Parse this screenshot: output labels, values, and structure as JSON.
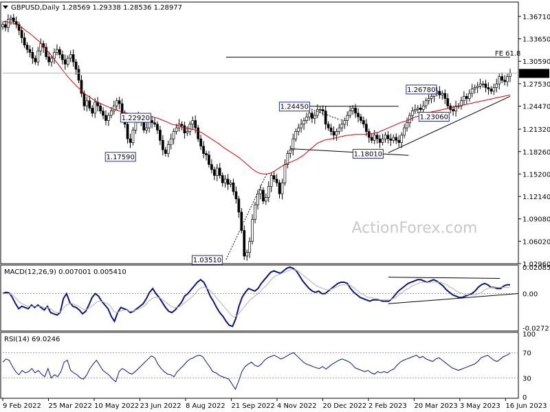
{
  "header": {
    "symbol": "GBPUSD,Daily",
    "ohlc": "1.28569 1.29338 1.28536 1.28977"
  },
  "colors": {
    "candle": "#000000",
    "ma": "#d40000",
    "macd": "#0a1478",
    "signal": "#b0b0b0",
    "label_border": "#1e2a8a",
    "price_highlight_bg": "#000000"
  },
  "chart_data": [
    {
      "type": "candlestick",
      "panel": "main",
      "title": "GBPUSD,Daily",
      "ylim": [
        1.0296,
        1.3867
      ],
      "y_ticks": [
        "1.36710",
        "1.33650",
        "1.30590",
        "1.27530",
        "1.24470",
        "1.21320",
        "1.18260",
        "1.15200",
        "1.12140",
        "1.09080",
        "1.06020",
        "1.02960"
      ],
      "y_tick_values": [
        1.3671,
        1.3365,
        1.3059,
        1.2753,
        1.2447,
        1.2132,
        1.1826,
        1.152,
        1.1214,
        1.0908,
        1.0602,
        1.0296
      ],
      "current_price": "1.28977",
      "current_price_value": 1.28977,
      "x_ticks": [
        "9 Feb 2022",
        "25 Mar 2022",
        "10 May 2022",
        "23 Jun 2022",
        "8 Aug 2022",
        "21 Sep 2022",
        "4 Nov 2022",
        "20 Dec 2022",
        "2 Feb 2023",
        "20 Mar 2023",
        "3 May 2023",
        "16 Jun 2023"
      ],
      "closes": [
        1.356,
        1.352,
        1.363,
        1.365,
        1.36,
        1.356,
        1.348,
        1.338,
        1.328,
        1.322,
        1.318,
        1.31,
        1.305,
        1.32,
        1.33,
        1.325,
        1.312,
        1.305,
        1.31,
        1.318,
        1.322,
        1.315,
        1.308,
        1.302,
        1.31,
        1.315,
        1.305,
        1.295,
        1.28,
        1.262,
        1.245,
        1.252,
        1.242,
        1.235,
        1.25,
        1.245,
        1.238,
        1.232,
        1.225,
        1.232,
        1.238,
        1.245,
        1.252,
        1.248,
        1.235,
        1.22,
        1.2,
        1.195,
        1.212,
        1.23,
        1.228,
        1.225,
        1.212,
        1.215,
        1.225,
        1.222,
        1.22,
        1.212,
        1.198,
        1.185,
        1.18,
        1.192,
        1.2,
        1.21,
        1.215,
        1.22,
        1.218,
        1.208,
        1.21,
        1.22,
        1.225,
        1.215,
        1.2,
        1.19,
        1.18,
        1.178,
        1.165,
        1.158,
        1.15,
        1.16,
        1.15,
        1.14,
        1.145,
        1.138,
        1.14,
        1.128,
        1.118,
        1.1,
        1.075,
        1.04,
        1.045,
        1.06,
        1.09,
        1.11,
        1.125,
        1.13,
        1.115,
        1.12,
        1.135,
        1.15,
        1.145,
        1.14,
        1.125,
        1.14,
        1.165,
        1.18,
        1.185,
        1.2,
        1.21,
        1.215,
        1.22,
        1.225,
        1.23,
        1.235,
        1.228,
        1.232,
        1.24,
        1.24,
        1.238,
        1.22,
        1.215,
        1.21,
        1.205,
        1.21,
        1.215,
        1.22,
        1.225,
        1.232,
        1.238,
        1.242,
        1.235,
        1.23,
        1.225,
        1.22,
        1.21,
        1.202,
        1.198,
        1.205,
        1.2,
        1.195,
        1.2,
        1.205,
        1.2,
        1.198,
        1.202,
        1.198,
        1.195,
        1.205,
        1.215,
        1.222,
        1.232,
        1.238,
        1.24,
        1.242,
        1.24,
        1.245,
        1.252,
        1.255,
        1.258,
        1.262,
        1.265,
        1.26,
        1.262,
        1.255,
        1.245,
        1.24,
        1.238,
        1.245,
        1.245,
        1.252,
        1.258,
        1.255,
        1.262,
        1.268,
        1.27,
        1.272,
        1.275,
        1.275,
        1.27,
        1.268,
        1.265,
        1.27,
        1.275,
        1.285,
        1.28,
        1.278,
        1.285,
        1.29
      ],
      "ma_values": [
        1.36,
        1.36,
        1.359,
        1.358,
        1.356,
        1.353,
        1.351,
        1.347,
        1.344,
        1.34,
        1.336,
        1.332,
        1.327,
        1.321,
        1.316,
        1.31,
        1.304,
        1.298,
        1.292,
        1.286,
        1.281,
        1.276,
        1.271,
        1.267,
        1.262,
        1.259,
        1.256,
        1.253,
        1.25,
        1.248,
        1.246,
        1.244,
        1.242,
        1.24,
        1.239,
        1.237,
        1.236,
        1.235,
        1.234,
        1.234,
        1.233,
        1.233,
        1.232,
        1.232,
        1.231,
        1.229,
        1.228,
        1.226,
        1.224,
        1.222,
        1.22,
        1.219,
        1.218,
        1.216,
        1.215,
        1.214,
        1.213,
        1.212,
        1.21,
        1.208,
        1.205,
        1.202,
        1.199,
        1.196,
        1.193,
        1.189,
        1.186,
        1.183,
        1.18,
        1.177,
        1.174,
        1.17,
        1.166,
        1.162,
        1.158,
        1.155,
        1.153,
        1.152,
        1.152,
        1.153,
        1.155,
        1.158,
        1.161,
        1.164,
        1.166,
        1.168,
        1.17,
        1.172,
        1.175,
        1.178,
        1.182,
        1.186,
        1.19,
        1.194,
        1.196,
        1.198,
        1.199,
        1.2,
        1.201,
        1.202,
        1.203,
        1.204,
        1.205,
        1.205,
        1.206,
        1.206,
        1.206,
        1.206,
        1.207,
        1.207,
        1.208,
        1.209,
        1.211,
        1.213,
        1.215,
        1.217,
        1.219,
        1.221,
        1.223,
        1.224,
        1.226,
        1.228,
        1.23,
        1.231,
        1.233,
        1.234,
        1.236,
        1.237,
        1.238,
        1.239,
        1.24,
        1.241,
        1.242,
        1.243,
        1.244,
        1.245,
        1.246,
        1.247,
        1.248,
        1.249,
        1.25,
        1.251,
        1.252,
        1.253,
        1.254,
        1.255,
        1.256,
        1.257,
        1.258,
        1.259,
        1.26
      ],
      "ma_x_range": [
        0.0,
        1.0
      ],
      "annotations": [
        {
          "text": "1.22920",
          "value": 1.2292
        },
        {
          "text": "1.17590",
          "value": 1.1759
        },
        {
          "text": "1.03510",
          "value": 1.0351
        },
        {
          "text": "1.24450",
          "value": 1.2445
        },
        {
          "text": "1.18010",
          "value": 1.1801
        },
        {
          "text": "1.26780",
          "value": 1.2678
        },
        {
          "text": "1.23060",
          "value": 1.2306
        },
        {
          "text": "FE 61.8",
          "value": 1.3115
        }
      ]
    },
    {
      "type": "line",
      "panel": "macd",
      "title": "MACD(12,26,9) 0.007001 0.005410",
      "ylim": [
        -0.0285,
        0.0215
      ],
      "y_ticks": [
        "0.020858",
        "0.00",
        "-0.027213"
      ],
      "y_tick_values": [
        0.020858,
        0.0,
        -0.027213
      ],
      "series": [
        {
          "name": "MACD",
          "values": [
            0.0,
            0.001,
            0.0005,
            -0.003,
            -0.008,
            -0.012,
            -0.01,
            -0.011,
            -0.012,
            -0.009,
            -0.011,
            -0.009,
            -0.011,
            -0.013,
            -0.01,
            -0.015,
            -0.016,
            -0.017,
            -0.015,
            -0.004,
            0.0,
            -0.007,
            -0.01,
            -0.011,
            -0.013,
            -0.016,
            -0.014,
            -0.009,
            -0.003,
            0.0,
            -0.002,
            -0.006,
            -0.009,
            -0.012,
            -0.018,
            -0.022,
            -0.015,
            -0.011,
            -0.012,
            -0.013,
            -0.015,
            -0.014,
            -0.012,
            -0.01,
            -0.008,
            -0.004,
            0.001,
            0.004,
            0.0,
            -0.003,
            -0.007,
            -0.011,
            -0.014,
            -0.015,
            -0.013,
            -0.01,
            -0.007,
            -0.002,
            0.0,
            0.003,
            0.006,
            0.009,
            0.011,
            0.009,
            0.004,
            -0.002,
            -0.006,
            -0.011,
            -0.015,
            -0.018,
            -0.022,
            -0.025,
            -0.026,
            -0.02,
            -0.01,
            -0.003,
            0.001,
            0.004,
            0.003,
            0.002,
            0.004,
            0.008,
            0.011,
            0.014,
            0.017,
            0.018,
            0.017,
            0.016,
            0.018,
            0.02,
            0.021,
            0.02,
            0.018,
            0.014,
            0.01,
            0.007,
            0.004,
            0.002,
            0.001,
            0.002,
            0.0,
            0.0,
            0.002,
            0.004,
            0.006,
            0.008,
            0.009,
            0.009,
            0.008,
            0.004,
            0.001,
            -0.001,
            -0.003,
            -0.004,
            -0.005,
            -0.006,
            -0.005,
            -0.005,
            -0.005,
            -0.006,
            -0.006,
            -0.006,
            -0.004,
            -0.001,
            0.002,
            0.004,
            0.006,
            0.008,
            0.009,
            0.01,
            0.011,
            0.011,
            0.01,
            0.009,
            0.01,
            0.011,
            0.01,
            0.008,
            0.006,
            0.003,
            0.001,
            -0.001,
            -0.002,
            -0.003,
            -0.003,
            -0.002,
            -0.001,
            0.0,
            0.002,
            0.005,
            0.007,
            0.008,
            0.007,
            0.005,
            0.005,
            0.004,
            0.004,
            0.006,
            0.007,
            0.007
          ]
        },
        {
          "name": "Signal",
          "values": [
            0.0,
            0.0,
            0.0,
            -0.001,
            -0.003,
            -0.006,
            -0.008,
            -0.009,
            -0.01,
            -0.01,
            -0.01,
            -0.01,
            -0.01,
            -0.011,
            -0.011,
            -0.012,
            -0.014,
            -0.015,
            -0.015,
            -0.012,
            -0.009,
            -0.008,
            -0.008,
            -0.009,
            -0.01,
            -0.012,
            -0.013,
            -0.012,
            -0.01,
            -0.008,
            -0.006,
            -0.006,
            -0.007,
            -0.008,
            -0.01,
            -0.014,
            -0.015,
            -0.014,
            -0.013,
            -0.013,
            -0.014,
            -0.014,
            -0.013,
            -0.012,
            -0.011,
            -0.009,
            -0.006,
            -0.004,
            -0.003,
            -0.003,
            -0.004,
            -0.006,
            -0.008,
            -0.01,
            -0.011,
            -0.011,
            -0.01,
            -0.008,
            -0.006,
            -0.004,
            -0.002,
            0.001,
            0.004,
            0.005,
            0.005,
            0.003,
            0.001,
            -0.002,
            -0.005,
            -0.008,
            -0.011,
            -0.014,
            -0.017,
            -0.019,
            -0.017,
            -0.014,
            -0.011,
            -0.008,
            -0.005,
            -0.003,
            -0.001,
            0.001,
            0.004,
            0.006,
            0.009,
            0.012,
            0.014,
            0.015,
            0.016,
            0.017,
            0.018,
            0.019,
            0.019,
            0.018,
            0.016,
            0.014,
            0.012,
            0.01,
            0.008,
            0.006,
            0.005,
            0.004,
            0.003,
            0.003,
            0.004,
            0.005,
            0.006,
            0.007,
            0.007,
            0.007,
            0.006,
            0.004,
            0.002,
            0.0,
            -0.001,
            -0.003,
            -0.003,
            -0.004,
            -0.004,
            -0.005,
            -0.005,
            -0.005,
            -0.005,
            -0.004,
            -0.003,
            -0.001,
            0.001,
            0.003,
            0.004,
            0.006,
            0.007,
            0.008,
            0.009,
            0.009,
            0.009,
            0.009,
            0.009,
            0.009,
            0.009,
            0.008,
            0.007,
            0.005,
            0.004,
            0.002,
            0.001,
            0.0,
            -0.001,
            -0.001,
            -0.001,
            -0.001,
            0.0,
            0.001,
            0.003,
            0.004,
            0.005,
            0.005,
            0.005,
            0.005,
            0.005,
            0.005,
            0.005
          ]
        }
      ]
    },
    {
      "type": "line",
      "panel": "rsi",
      "title": "RSI(14) 69.0246",
      "ylim": [
        0,
        100
      ],
      "y_ticks": [
        "100",
        "70",
        "30",
        "0"
      ],
      "y_tick_values": [
        100,
        70,
        30,
        0
      ],
      "series": [
        {
          "name": "RSI",
          "values": [
            55,
            60,
            58,
            48,
            40,
            35,
            42,
            38,
            40,
            45,
            38,
            42,
            36,
            32,
            45,
            30,
            35,
            32,
            40,
            55,
            58,
            42,
            38,
            35,
            30,
            28,
            35,
            45,
            52,
            58,
            50,
            42,
            38,
            34,
            28,
            24,
            40,
            45,
            42,
            38,
            36,
            40,
            45,
            50,
            55,
            60,
            65,
            62,
            52,
            45,
            40,
            36,
            35,
            32,
            40,
            45,
            50,
            56,
            60,
            62,
            65,
            66,
            63,
            55,
            48,
            40,
            38,
            34,
            32,
            30,
            28,
            20,
            12,
            25,
            40,
            48,
            52,
            55,
            50,
            48,
            52,
            58,
            62,
            64,
            66,
            63,
            60,
            62,
            65,
            68,
            70,
            65,
            60,
            55,
            52,
            50,
            48,
            46,
            45,
            48,
            44,
            48,
            52,
            55,
            58,
            60,
            58,
            56,
            52,
            46,
            44,
            42,
            40,
            42,
            38,
            36,
            40,
            38,
            40,
            38,
            42,
            44,
            50,
            55,
            58,
            60,
            62,
            64,
            66,
            62,
            64,
            60,
            58,
            56,
            60,
            62,
            58,
            54,
            50,
            46,
            44,
            42,
            44,
            46,
            48,
            50,
            52,
            56,
            62,
            64,
            66,
            62,
            58,
            56,
            60,
            64,
            66,
            69
          ]
        }
      ]
    }
  ],
  "watermark": "ActionForex.com"
}
